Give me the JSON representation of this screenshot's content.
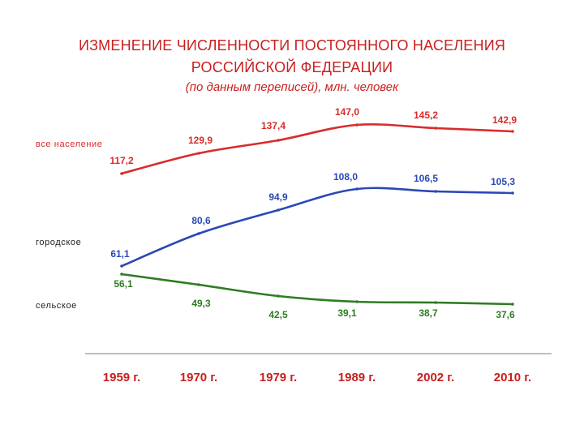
{
  "title_line1": "ИЗМЕНЕНИЕ ЧИСЛЕННОСТИ ПОСТОЯННОГО НАСЕЛЕНИЯ",
  "title_line2": "РОССИЙСКОЙ ФЕДЕРАЦИИ",
  "subtitle": "(по данным переписей), млн. человек",
  "chart_data": {
    "type": "line",
    "title": "ИЗМЕНЕНИЕ ЧИСЛЕННОСТИ ПОСТОЯННОГО НАСЕЛЕНИЯ РОССИЙСКОЙ ФЕДЕРАЦИИ",
    "subtitle": "(по данным переписей), млн. человек",
    "categories": [
      "1959 г.",
      "1970 г.",
      "1979 г.",
      "1989 г.",
      "2002 г.",
      "2010 г."
    ],
    "series": [
      {
        "name": "все население",
        "color": "#d92b2b",
        "values": [
          117.2,
          129.9,
          137.4,
          147.0,
          145.2,
          142.9
        ],
        "labels": [
          "117,2",
          "129,9",
          "137,4",
          "147,0",
          "145,2",
          "142,9"
        ]
      },
      {
        "name": "городское",
        "color": "#2b48b5",
        "values": [
          61.1,
          80.6,
          94.9,
          108.0,
          106.5,
          105.3
        ],
        "labels": [
          "61,1",
          "80,6",
          "94,9",
          "108,0",
          "106,5",
          "105,3"
        ]
      },
      {
        "name": "сельское",
        "color": "#2e7d22",
        "values": [
          56.1,
          49.3,
          42.5,
          39.1,
          38.7,
          37.6
        ],
        "labels": [
          "56,1",
          "49,3",
          "42,5",
          "39,1",
          "38,7",
          "37,6"
        ]
      }
    ],
    "legend_placement": "left, beside each line",
    "xlabel": "",
    "ylabel": "",
    "grid": false
  }
}
